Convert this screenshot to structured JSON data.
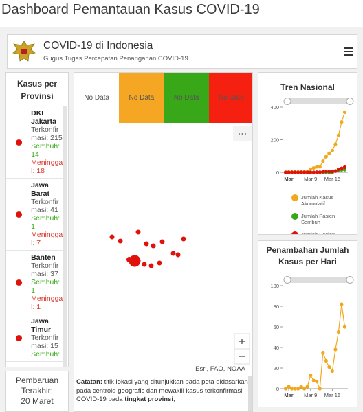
{
  "page_title": "Dashboard Pemantauan Kasus COVID-19",
  "header": {
    "title": "COVID-19 di Indonesia",
    "subtitle": "Gugus Tugas Percepatan Penanganan COVID-19"
  },
  "provinces": {
    "title": "Kasus per Provinsi",
    "items": [
      {
        "name": "DKI Jakarta",
        "confirmed_label": "Terkonfirmasi:",
        "confirmed": 215,
        "recovered_label": "Sembuh:",
        "recovered": 14,
        "deaths_label": "Meninggal:",
        "deaths": 18
      },
      {
        "name": "Jawa Barat",
        "confirmed_label": "Terkonfirmasi:",
        "confirmed": 41,
        "recovered_label": "Sembuh:",
        "recovered": 1,
        "deaths_label": "Meninggal:",
        "deaths": 7
      },
      {
        "name": "Banten",
        "confirmed_label": "Terkonfirmasi:",
        "confirmed": 37,
        "recovered_label": "Sembuh:",
        "recovered": 1,
        "deaths_label": "Meninggal:",
        "deaths": 1
      },
      {
        "name": "Jawa Timur",
        "confirmed_label": "Terkonfirmasi:",
        "confirmed": 15,
        "recovered_label": "Sembuh:"
      }
    ]
  },
  "last_update": {
    "title": "Pembaruan Terakhir:",
    "date": "20 Maret"
  },
  "map": {
    "legend": [
      {
        "label": "No Data",
        "color": "#ffffff"
      },
      {
        "label": "No Data",
        "color": "#f5a623"
      },
      {
        "label": "No Data",
        "color": "#38a818"
      },
      {
        "label": "No Data",
        "color": "#f5200f"
      }
    ],
    "attribution": "Esri, FAO, NOAA",
    "note": {
      "lead": "Catatan:",
      "body": "titik lokasi yang ditunjukkan pada peta didasarkan pada centroid geografis dan mewakili kasus terkonfirmasi COVID-19 pada",
      "emphasis": "tingkat provinsi",
      "tail": ","
    }
  },
  "chart_data": [
    {
      "type": "line",
      "title": "Tren Nasional",
      "x": [
        1,
        2,
        3,
        4,
        5,
        6,
        7,
        8,
        9,
        10,
        11,
        12,
        13,
        14,
        15,
        16,
        17,
        18,
        19,
        20
      ],
      "xlim": [
        0,
        21
      ],
      "xticks": [
        {
          "value": 2,
          "label": "Mar"
        },
        {
          "value": 9,
          "label": "Mar 9"
        },
        {
          "value": 16,
          "label": "Mar 16"
        }
      ],
      "ylim": [
        0,
        400
      ],
      "yticks": [
        0,
        200,
        400
      ],
      "series": [
        {
          "name": "Jumlah Kasus Akumulatif",
          "color": "#f0a91e",
          "values": [
            0,
            2,
            2,
            2,
            2,
            4,
            4,
            6,
            19,
            27,
            34,
            34,
            69,
            96,
            117,
            134,
            172,
            227,
            309,
            369
          ]
        },
        {
          "name": "Jumlah Pasien Sembuh",
          "color": "#38a818",
          "values": [
            0,
            0,
            0,
            0,
            0,
            0,
            0,
            0,
            0,
            0,
            0,
            0,
            0,
            0,
            0,
            0,
            9,
            11,
            15,
            16
          ]
        },
        {
          "name": "Jumlah Pasien Meninggal",
          "color": "#e0120c",
          "values": [
            0,
            0,
            0,
            0,
            0,
            0,
            0,
            0,
            0,
            0,
            1,
            1,
            4,
            5,
            5,
            5,
            7,
            19,
            25,
            32
          ]
        }
      ]
    },
    {
      "type": "line",
      "title": "Penambahan Jumlah Kasus per Hari",
      "x": [
        1,
        2,
        3,
        4,
        5,
        6,
        7,
        8,
        9,
        10,
        11,
        12,
        13,
        14,
        15,
        16,
        17,
        18,
        19,
        20
      ],
      "xlim": [
        0,
        21
      ],
      "xticks": [
        {
          "value": 2,
          "label": "Mar"
        },
        {
          "value": 9,
          "label": "Mar 9"
        },
        {
          "value": 16,
          "label": "Mar 16"
        }
      ],
      "ylim": [
        0,
        100
      ],
      "yticks": [
        0,
        20,
        40,
        60,
        80,
        100
      ],
      "series": [
        {
          "color": "#f0a91e",
          "values": [
            0,
            2,
            0,
            0,
            0,
            2,
            0,
            2,
            13,
            8,
            7,
            0,
            35,
            27,
            21,
            17,
            38,
            55,
            82,
            60
          ]
        }
      ]
    }
  ]
}
